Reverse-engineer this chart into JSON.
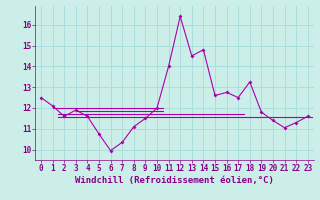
{
  "xlabel": "Windchill (Refroidissement éolien,°C)",
  "bg_color": "#cceee8",
  "grid_color": "#aadddd",
  "line_color": "#aa00aa",
  "hours": [
    0,
    1,
    2,
    3,
    4,
    5,
    6,
    7,
    8,
    9,
    10,
    11,
    12,
    13,
    14,
    15,
    16,
    17,
    18,
    19,
    20,
    21,
    22,
    23
  ],
  "windchill": [
    12.5,
    12.1,
    11.6,
    11.9,
    11.6,
    10.75,
    9.95,
    10.35,
    11.1,
    11.5,
    12.0,
    14.0,
    16.4,
    14.5,
    14.8,
    12.6,
    12.75,
    12.5,
    13.25,
    11.8,
    11.4,
    11.05,
    11.3,
    11.6
  ],
  "hlines": [
    {
      "y": 11.58,
      "xstart": 1.5,
      "xend": 23.4
    },
    {
      "y": 11.72,
      "xstart": 1.5,
      "xend": 17.5
    },
    {
      "y": 11.98,
      "xstart": 1.0,
      "xend": 10.5
    },
    {
      "y": 11.85,
      "xstart": 3.0,
      "xend": 10.5
    }
  ],
  "ylim": [
    9.5,
    16.9
  ],
  "yticks": [
    10,
    11,
    12,
    13,
    14,
    15,
    16
  ],
  "xlim": [
    -0.5,
    23.5
  ],
  "xticks": [
    0,
    1,
    2,
    3,
    4,
    5,
    6,
    7,
    8,
    9,
    10,
    11,
    12,
    13,
    14,
    15,
    16,
    17,
    18,
    19,
    20,
    21,
    22,
    23
  ],
  "font_color": "#880088",
  "tick_font_size": 5.5,
  "label_font_size": 6.5
}
